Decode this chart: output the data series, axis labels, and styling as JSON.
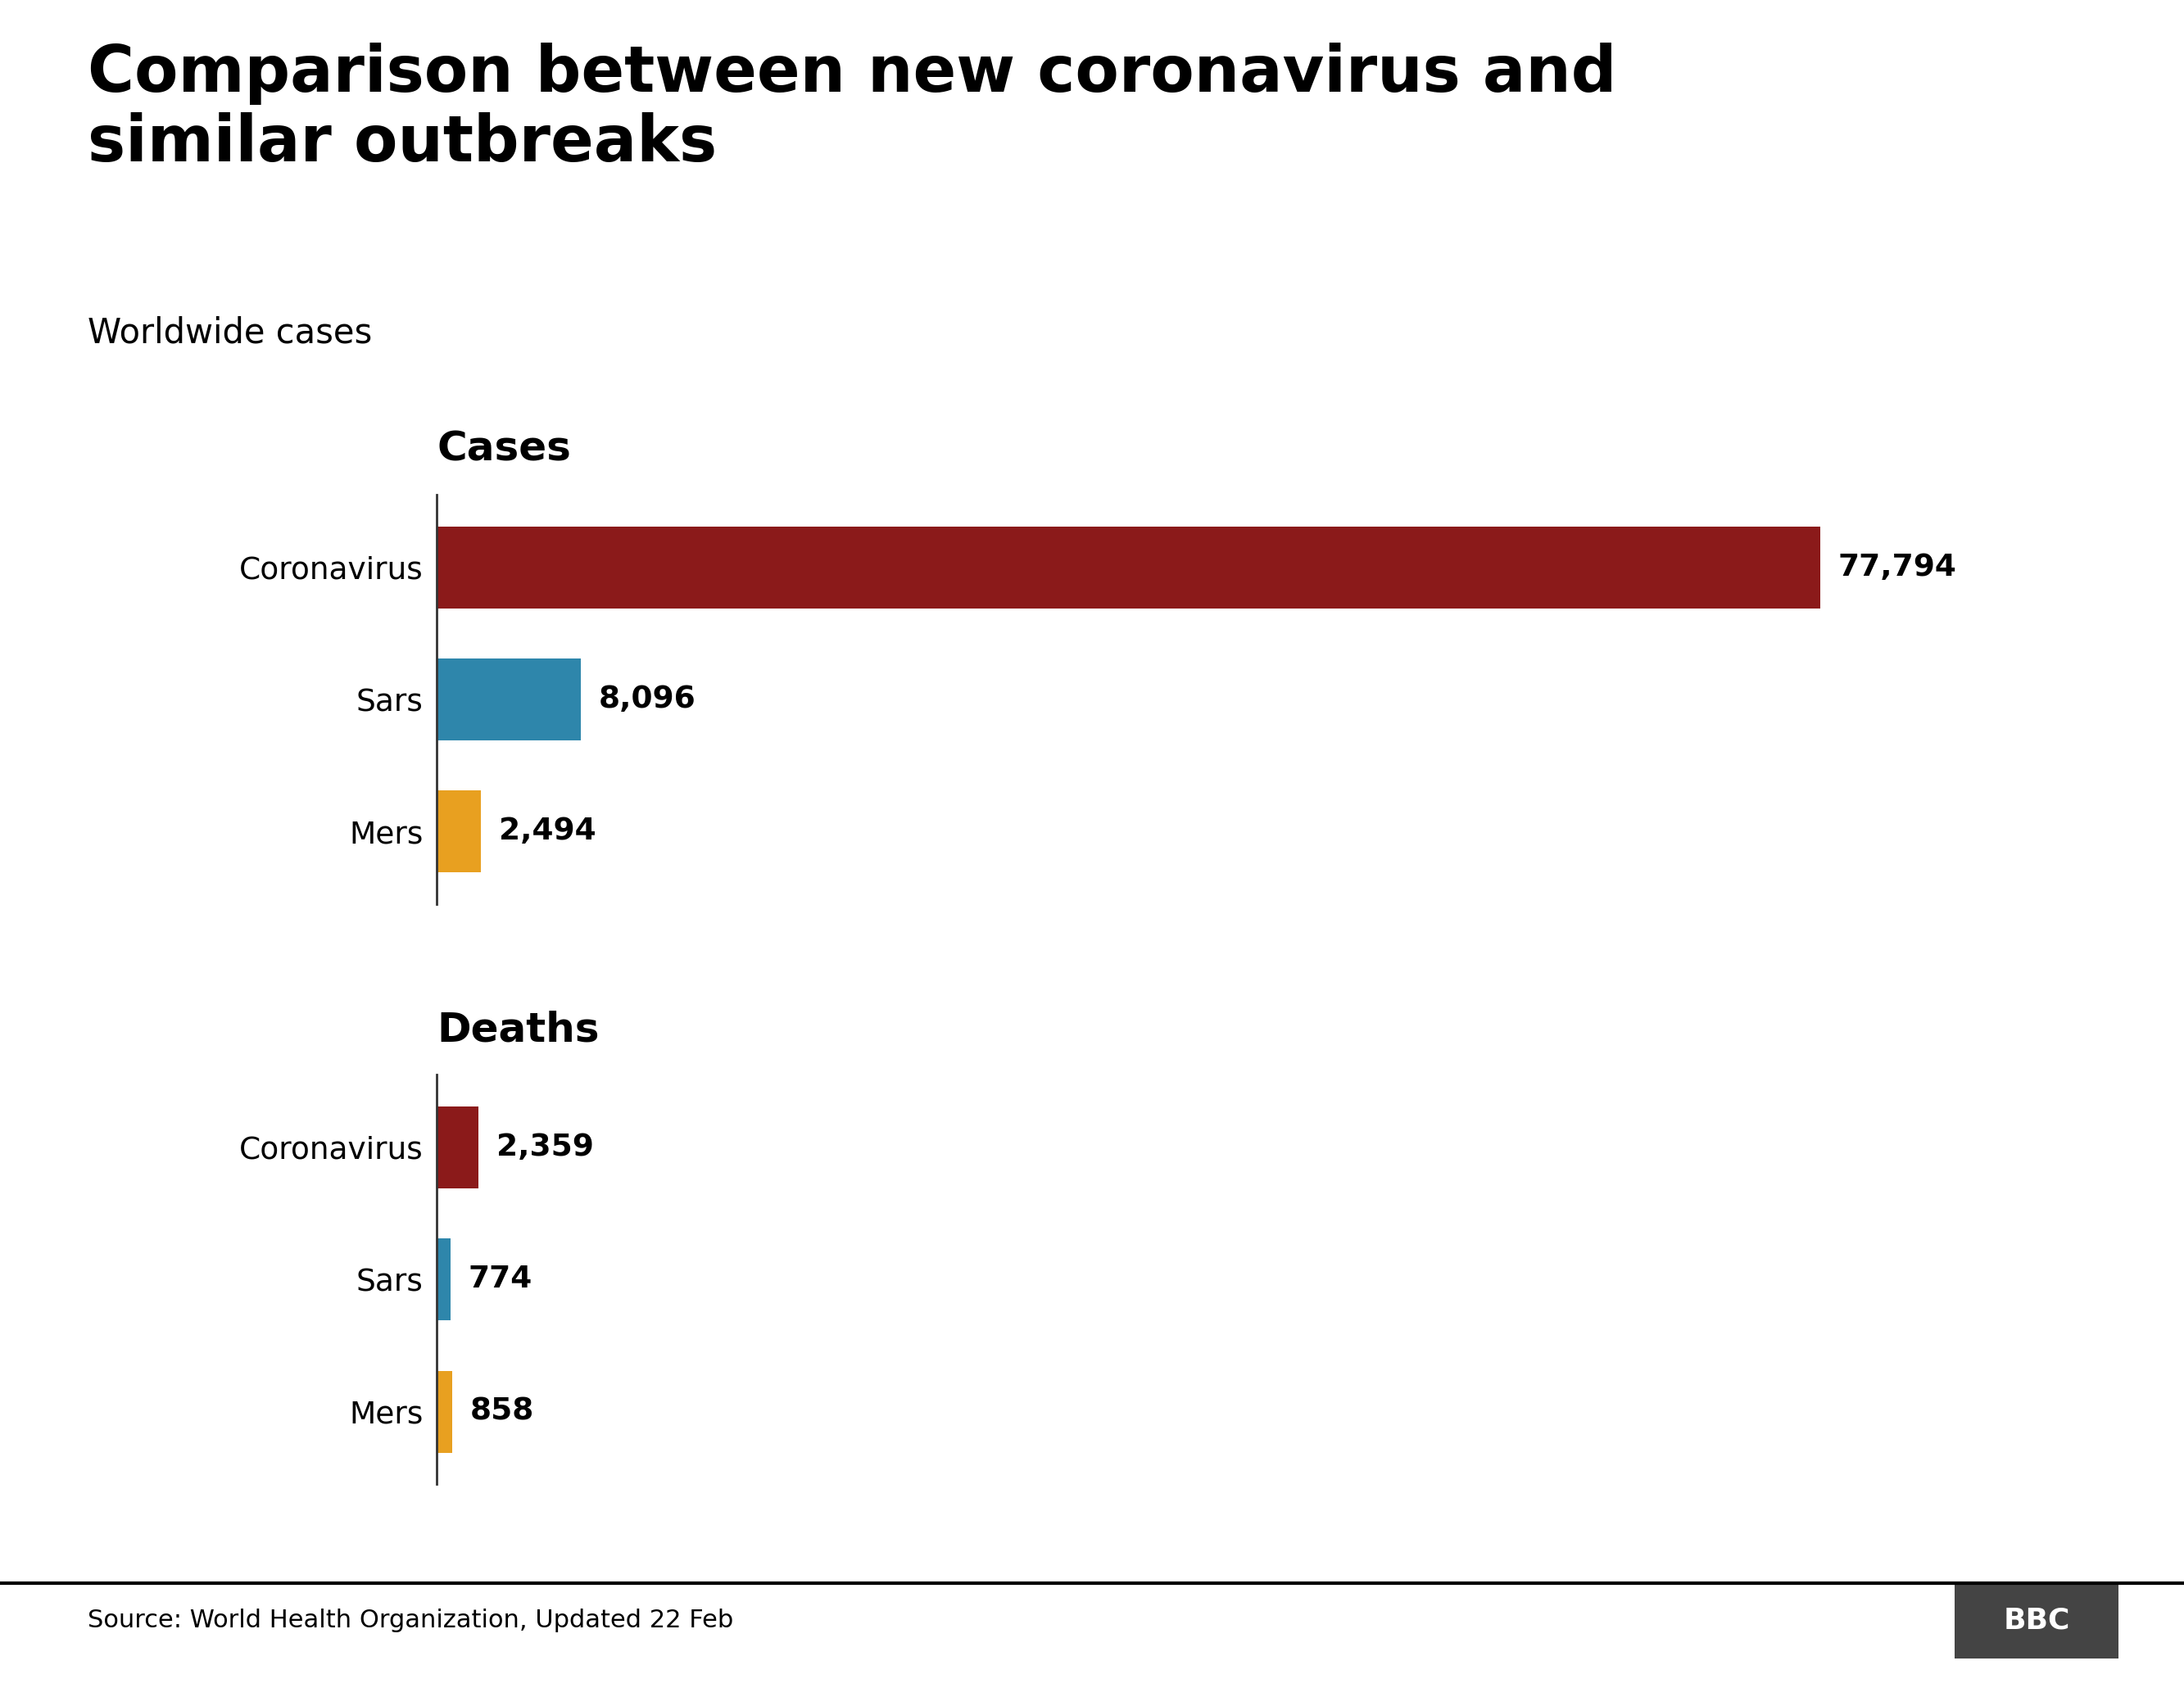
{
  "title": "Comparison between new coronavirus and\nsimilar outbreaks",
  "subtitle": "Worldwide cases",
  "source": "Source: World Health Organization, Updated 22 Feb",
  "cases": {
    "section_title": "Cases",
    "labels": [
      "Coronavirus",
      "Sars",
      "Mers"
    ],
    "values": [
      77794,
      8096,
      2494
    ],
    "colors": [
      "#8B1A1A",
      "#2E86AB",
      "#E8A020"
    ],
    "formatted": [
      "77,794",
      "8,096",
      "2,494"
    ]
  },
  "deaths": {
    "section_title": "Deaths",
    "labels": [
      "Coronavirus",
      "Sars",
      "Mers"
    ],
    "values": [
      2359,
      774,
      858
    ],
    "colors": [
      "#8B1A1A",
      "#2E86AB",
      "#E8A020"
    ],
    "formatted": [
      "2,359",
      "774",
      "858"
    ]
  },
  "background_color": "#FFFFFF",
  "title_fontsize": 56,
  "subtitle_fontsize": 30,
  "section_title_fontsize": 36,
  "label_fontsize": 27,
  "value_fontsize": 27,
  "source_fontsize": 22,
  "bar_height": 0.62,
  "text_color": "#000000",
  "bbc_box_color": "#444444",
  "bbc_text_color": "#FFFFFF",
  "footer_line_color": "#000000",
  "spine_color": "#333333"
}
